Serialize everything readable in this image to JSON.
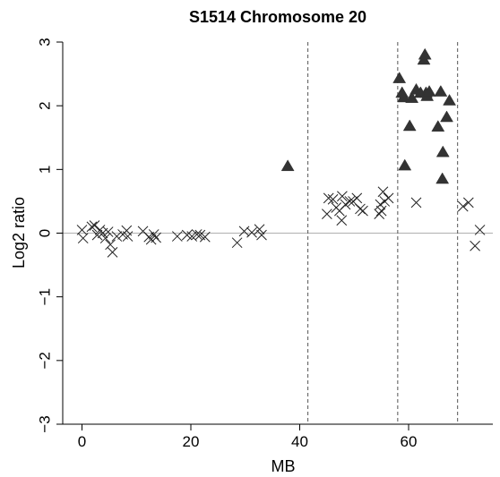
{
  "chart_data": {
    "type": "scatter",
    "title": "S1514  Chromosome  20",
    "xlabel": "MB",
    "ylabel": "Log2 ratio",
    "xlim": [
      -2,
      75
    ],
    "ylim": [
      -3,
      3
    ],
    "x_ticks": [
      0,
      20,
      40,
      60
    ],
    "y_ticks": [
      -3,
      -2,
      -1,
      0,
      1,
      2,
      3
    ],
    "x_tick_labels": [
      "0",
      "20",
      "40",
      "60"
    ],
    "y_tick_labels": [
      "−3",
      "−2",
      "−1",
      "0",
      "1",
      "2",
      "3"
    ],
    "reference_line": 0,
    "vertical_lines": [
      41.5,
      58,
      69
    ],
    "series": [
      {
        "marker": "x",
        "points": [
          [
            0,
            0.05
          ],
          [
            0.2,
            -0.08
          ],
          [
            1.8,
            0.1
          ],
          [
            2.3,
            0.12
          ],
          [
            2.8,
            -0.03
          ],
          [
            3.3,
            0.05
          ],
          [
            3.8,
            0
          ],
          [
            4.3,
            -0.08
          ],
          [
            4.8,
            0.02
          ],
          [
            5.2,
            -0.18
          ],
          [
            5.6,
            -0.3
          ],
          [
            6.4,
            -0.05
          ],
          [
            7.5,
            -0.02
          ],
          [
            8.2,
            0.04
          ],
          [
            8.4,
            -0.05
          ],
          [
            11.2,
            0.03
          ],
          [
            12.3,
            -0.06
          ],
          [
            12.7,
            -0.1
          ],
          [
            13.2,
            -0.02
          ],
          [
            13.6,
            -0.07
          ],
          [
            17.5,
            -0.05
          ],
          [
            19.3,
            -0.03
          ],
          [
            20.2,
            -0.05
          ],
          [
            21.1,
            -0.02
          ],
          [
            21.7,
            -0.03
          ],
          [
            22.6,
            -0.06
          ],
          [
            28.5,
            -0.15
          ],
          [
            29.8,
            0.03
          ],
          [
            31.2,
            0.01
          ],
          [
            32.6,
            0.06
          ],
          [
            33,
            -0.03
          ],
          [
            45,
            0.3
          ],
          [
            45.3,
            0.55
          ],
          [
            46.1,
            0.53
          ],
          [
            46.7,
            0.4
          ],
          [
            47.3,
            0.35
          ],
          [
            47.7,
            0.2
          ],
          [
            47.8,
            0.58
          ],
          [
            48.4,
            0.45
          ],
          [
            49.2,
            0.5
          ],
          [
            49.8,
            0.5
          ],
          [
            50.5,
            0.55
          ],
          [
            51.1,
            0.38
          ],
          [
            51.6,
            0.35
          ],
          [
            54.6,
            0.3
          ],
          [
            54.8,
            0.45
          ],
          [
            55,
            0.35
          ],
          [
            55.3,
            0.65
          ],
          [
            55.6,
            0.5
          ],
          [
            56.3,
            0.55
          ],
          [
            61.4,
            0.48
          ],
          [
            70,
            0.42
          ],
          [
            71,
            0.48
          ],
          [
            72.2,
            -0.2
          ],
          [
            73.1,
            0.05
          ]
        ]
      },
      {
        "marker": "triangle",
        "points": [
          [
            37.8,
            1.05
          ],
          [
            58.3,
            2.43
          ],
          [
            58.8,
            2.2
          ],
          [
            59.1,
            2.13
          ],
          [
            59.3,
            1.06
          ],
          [
            60.2,
            1.68
          ],
          [
            60.6,
            2.12
          ],
          [
            61.4,
            2.25
          ],
          [
            62.2,
            2.2
          ],
          [
            62.8,
            2.72
          ],
          [
            63,
            2.8
          ],
          [
            63.2,
            2.2
          ],
          [
            63.4,
            2.15
          ],
          [
            63.8,
            2.22
          ],
          [
            65.4,
            1.67
          ],
          [
            65.9,
            2.22
          ],
          [
            66.2,
            0.85
          ],
          [
            66.3,
            1.27
          ],
          [
            67,
            1.82
          ],
          [
            67.5,
            2.08
          ]
        ]
      }
    ]
  }
}
